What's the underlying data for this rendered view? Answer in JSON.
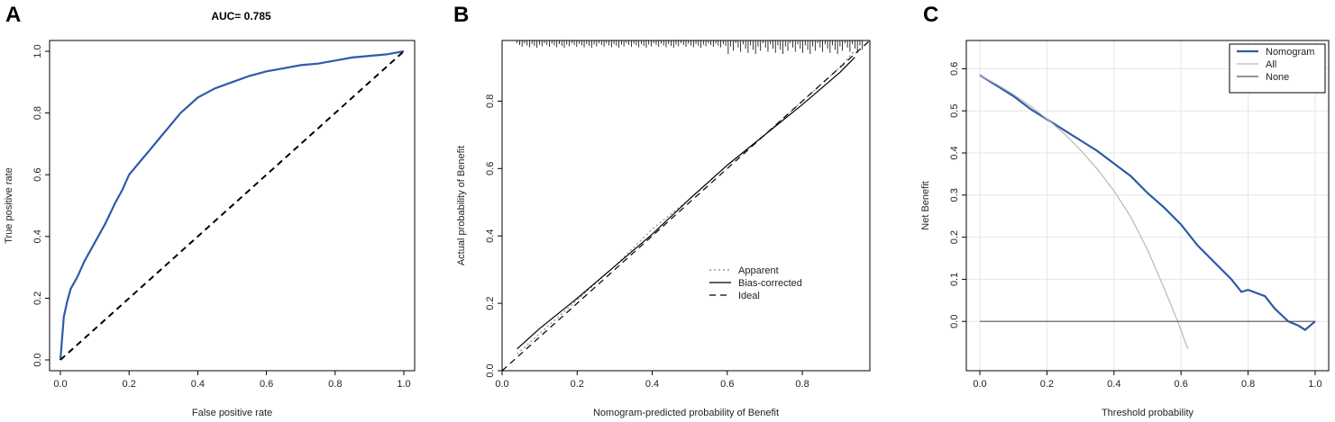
{
  "chart_data": [
    {
      "panel": "A",
      "type": "line",
      "title": "AUC= 0.785",
      "xlabel": "False positive rate",
      "ylabel": "True positive rate",
      "xlim": [
        0,
        1
      ],
      "ylim": [
        0,
        1
      ],
      "xticks": [
        "0.0",
        "0.2",
        "0.4",
        "0.6",
        "0.8",
        "1.0"
      ],
      "yticks": [
        "0.0",
        "0.2",
        "0.4",
        "0.6",
        "0.8",
        "1.0"
      ],
      "series": [
        {
          "color": "#2f5aa8",
          "style": "solid",
          "x": [
            0,
            0.005,
            0.01,
            0.02,
            0.03,
            0.05,
            0.07,
            0.1,
            0.13,
            0.16,
            0.18,
            0.2,
            0.23,
            0.26,
            0.29,
            0.32,
            0.35,
            0.37,
            0.4,
            0.45,
            0.5,
            0.55,
            0.6,
            0.65,
            0.7,
            0.75,
            0.8,
            0.85,
            0.9,
            0.95,
            1.0
          ],
          "y": [
            0,
            0.07,
            0.14,
            0.19,
            0.23,
            0.27,
            0.32,
            0.38,
            0.44,
            0.51,
            0.55,
            0.6,
            0.64,
            0.68,
            0.72,
            0.76,
            0.8,
            0.82,
            0.85,
            0.88,
            0.9,
            0.92,
            0.935,
            0.945,
            0.955,
            0.96,
            0.97,
            0.98,
            0.985,
            0.99,
            1.0
          ]
        },
        {
          "color": "#000000",
          "style": "dashed",
          "x": [
            0,
            1
          ],
          "y": [
            0,
            1
          ]
        }
      ]
    },
    {
      "panel": "B",
      "type": "line",
      "xlabel": "Nomogram-predicted probability of Benefit",
      "ylabel": "Actual probability of Benefit",
      "xlim": [
        0,
        0.98
      ],
      "ylim": [
        0,
        0.98
      ],
      "xticks": [
        "0.0",
        "0.2",
        "0.4",
        "0.6",
        "0.8"
      ],
      "yticks": [
        "0.0",
        "0.2",
        "0.4",
        "0.6",
        "0.8"
      ],
      "legend": [
        "Apparent",
        "Bias-corrected",
        "Ideal"
      ],
      "legend_position": "bottom-right",
      "series": [
        {
          "name": "Apparent",
          "style": "dotted",
          "color": "#888888",
          "x": [
            0.04,
            0.1,
            0.2,
            0.3,
            0.4,
            0.5,
            0.6,
            0.7,
            0.8,
            0.9,
            0.94
          ],
          "y": [
            0.05,
            0.11,
            0.21,
            0.31,
            0.42,
            0.51,
            0.61,
            0.7,
            0.8,
            0.9,
            0.95
          ]
        },
        {
          "name": "Bias-corrected",
          "style": "solid",
          "color": "#000000",
          "x": [
            0.04,
            0.1,
            0.2,
            0.3,
            0.4,
            0.5,
            0.6,
            0.7,
            0.8,
            0.9,
            0.94
          ],
          "y": [
            0.065,
            0.125,
            0.215,
            0.31,
            0.405,
            0.51,
            0.61,
            0.7,
            0.79,
            0.885,
            0.93
          ]
        },
        {
          "name": "Ideal",
          "style": "dashed",
          "color": "#000000",
          "x": [
            0,
            0.98
          ],
          "y": [
            0,
            0.98
          ]
        }
      ]
    },
    {
      "panel": "C",
      "type": "line",
      "xlabel": "Threshold probability",
      "ylabel": "Net Benefit",
      "xlim": [
        0,
        1
      ],
      "ylim": [
        -0.1,
        0.65
      ],
      "xticks": [
        "0.0",
        "0.2",
        "0.4",
        "0.6",
        "0.8",
        "1.0"
      ],
      "yticks": [
        "0.0",
        "0.1",
        "0.2",
        "0.3",
        "0.4",
        "0.5",
        "0.6"
      ],
      "grid": true,
      "legend": [
        "Nomogram",
        "All",
        "None"
      ],
      "legend_position": "top-right",
      "series": [
        {
          "name": "Nomogram",
          "color": "#2f5aa8",
          "x": [
            0,
            0.05,
            0.1,
            0.15,
            0.2,
            0.25,
            0.3,
            0.35,
            0.4,
            0.45,
            0.5,
            0.55,
            0.6,
            0.65,
            0.7,
            0.75,
            0.78,
            0.8,
            0.85,
            0.88,
            0.9,
            0.92,
            0.95,
            0.97,
            1.0
          ],
          "y": [
            0.585,
            0.56,
            0.535,
            0.505,
            0.48,
            0.455,
            0.43,
            0.405,
            0.375,
            0.345,
            0.305,
            0.27,
            0.23,
            0.18,
            0.14,
            0.1,
            0.07,
            0.075,
            0.06,
            0.03,
            0.015,
            0.0,
            -0.01,
            -0.02,
            0.0
          ]
        },
        {
          "name": "All",
          "color": "#b8b8b8",
          "x": [
            0,
            0.05,
            0.1,
            0.15,
            0.2,
            0.25,
            0.3,
            0.35,
            0.4,
            0.45,
            0.5,
            0.55,
            0.59,
            0.62
          ],
          "y": [
            0.585,
            0.563,
            0.539,
            0.512,
            0.481,
            0.447,
            0.407,
            0.362,
            0.31,
            0.248,
            0.17,
            0.078,
            0.0,
            -0.065
          ]
        },
        {
          "name": "None",
          "color": "#555555",
          "x": [
            0,
            1
          ],
          "y": [
            0,
            0
          ]
        }
      ]
    }
  ]
}
